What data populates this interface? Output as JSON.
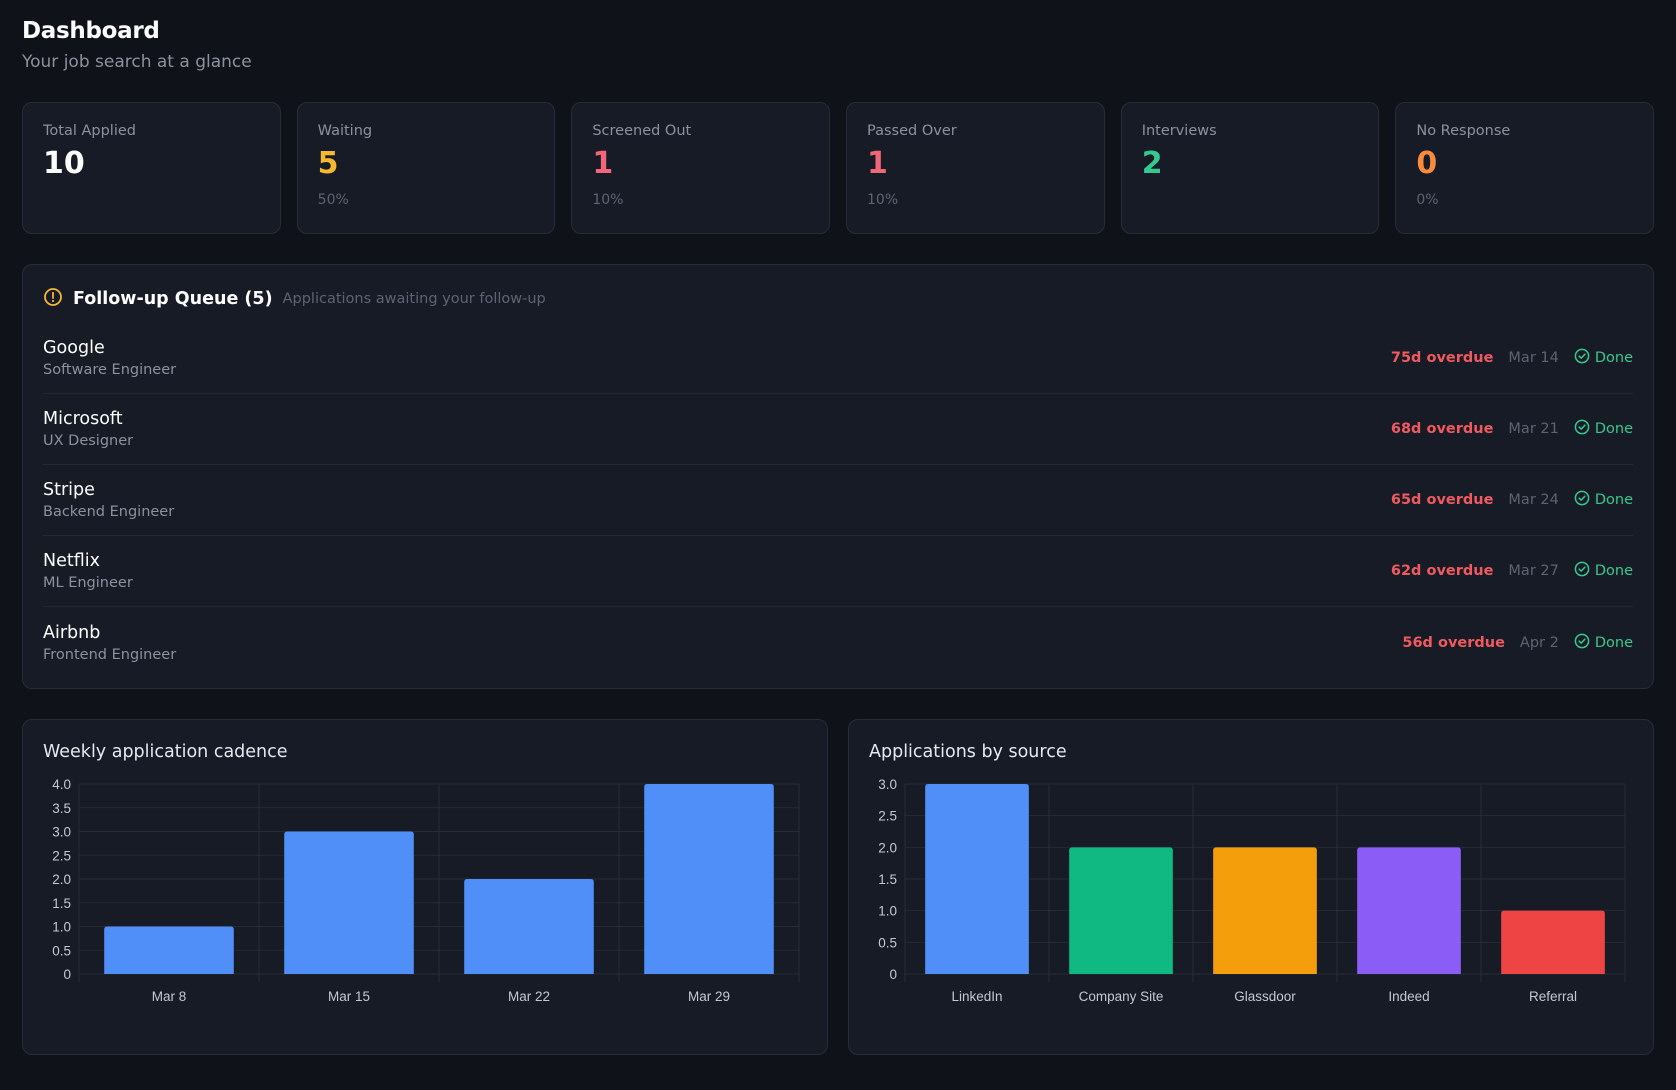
{
  "header": {
    "title": "Dashboard",
    "subtitle": "Your job search at a glance"
  },
  "stats": [
    {
      "label": "Total Applied",
      "value": "10",
      "pct": "",
      "color": "#ffffff"
    },
    {
      "label": "Waiting",
      "value": "5",
      "pct": "50%",
      "color": "#f5b82e"
    },
    {
      "label": "Screened Out",
      "value": "1",
      "pct": "10%",
      "color": "#f2667a"
    },
    {
      "label": "Passed Over",
      "value": "1",
      "pct": "10%",
      "color": "#f2667a"
    },
    {
      "label": "Interviews",
      "value": "2",
      "pct": "",
      "color": "#34c98e"
    },
    {
      "label": "No Response",
      "value": "0",
      "pct": "0%",
      "color": "#f98b3c"
    }
  ],
  "queue": {
    "title": "Follow-up Queue (5)",
    "description": "Applications awaiting your follow-up",
    "icon": "alert-circle-icon",
    "items": [
      {
        "company": "Google",
        "role": "Software Engineer",
        "overdue": "75d overdue",
        "date": "Mar 14",
        "action": "Done"
      },
      {
        "company": "Microsoft",
        "role": "UX Designer",
        "overdue": "68d overdue",
        "date": "Mar 21",
        "action": "Done"
      },
      {
        "company": "Stripe",
        "role": "Backend Engineer",
        "overdue": "65d overdue",
        "date": "Mar 24",
        "action": "Done"
      },
      {
        "company": "Netflix",
        "role": "ML Engineer",
        "overdue": "62d overdue",
        "date": "Mar 27",
        "action": "Done"
      },
      {
        "company": "Airbnb",
        "role": "Frontend Engineer",
        "overdue": "56d overdue",
        "date": "Apr 2",
        "action": "Done"
      }
    ]
  },
  "chart_data": [
    {
      "type": "bar",
      "title": "Weekly application cadence",
      "categories": [
        "Mar 8",
        "Mar 15",
        "Mar 22",
        "Mar 29"
      ],
      "values": [
        1,
        3,
        2,
        4
      ],
      "colors": [
        "#4f8ff7",
        "#4f8ff7",
        "#4f8ff7",
        "#4f8ff7"
      ],
      "ylim": [
        0,
        4
      ],
      "yticks": [
        "0",
        "0.5",
        "1.0",
        "1.5",
        "2.0",
        "2.5",
        "3.0",
        "3.5",
        "4.0"
      ],
      "grid": true
    },
    {
      "type": "bar",
      "title": "Applications by source",
      "categories": [
        "LinkedIn",
        "Company Site",
        "Glassdoor",
        "Indeed",
        "Referral"
      ],
      "values": [
        3,
        2,
        2,
        2,
        1
      ],
      "colors": [
        "#4f8ff7",
        "#10b981",
        "#f59e0b",
        "#8b5cf6",
        "#ef4444"
      ],
      "ylim": [
        0,
        3
      ],
      "yticks": [
        "0",
        "0.5",
        "1.0",
        "1.5",
        "2.0",
        "2.5",
        "3.0"
      ],
      "grid": true
    }
  ]
}
